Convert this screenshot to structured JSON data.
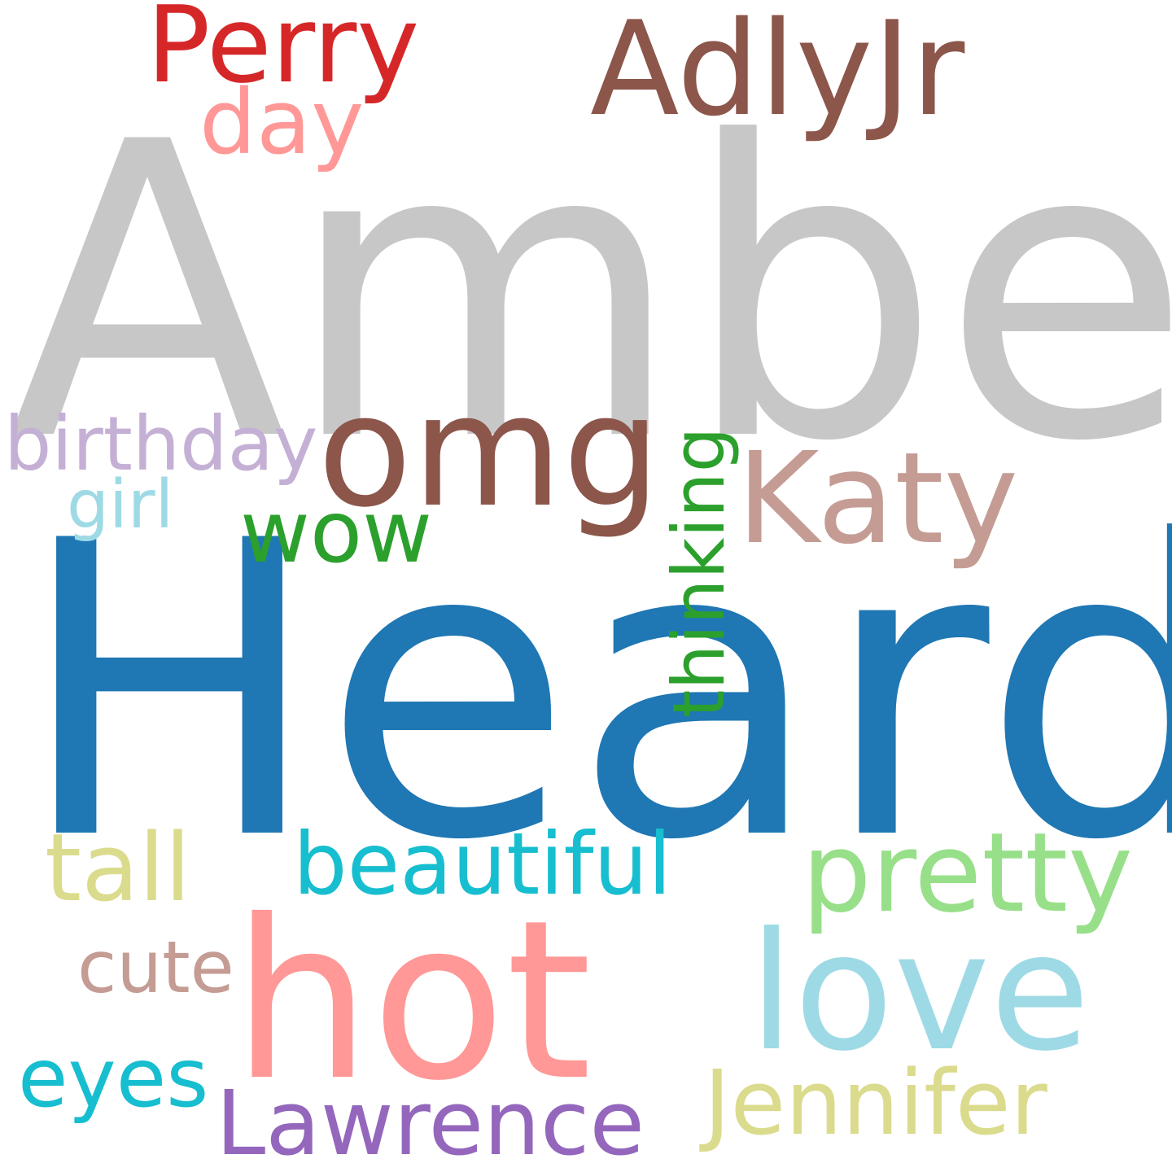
{
  "words": {
    "amber": {
      "text": "Amber",
      "color": "#c7c7c7"
    },
    "heard": {
      "text": "Heard",
      "color": "#1f77b4"
    },
    "perry": {
      "text": "Perry",
      "color": "#d62728"
    },
    "adlyjr": {
      "text": "AdlyJr",
      "color": "#8c564b"
    },
    "day": {
      "text": "day",
      "color": "#ff9896"
    },
    "omg": {
      "text": "omg",
      "color": "#8c564b"
    },
    "katy": {
      "text": "Katy",
      "color": "#c49c94"
    },
    "birthday": {
      "text": "birthday",
      "color": "#c5b0d5"
    },
    "girl": {
      "text": "girl",
      "color": "#9edae5"
    },
    "wow": {
      "text": "wow",
      "color": "#2ca02c"
    },
    "thinking": {
      "text": "thinking",
      "color": "#2ca02c"
    },
    "tall": {
      "text": "tall",
      "color": "#dbdb8d"
    },
    "beautiful": {
      "text": "beautiful",
      "color": "#17becf"
    },
    "pretty": {
      "text": "pretty",
      "color": "#98df8a"
    },
    "cute": {
      "text": "cute",
      "color": "#c49c94"
    },
    "hot": {
      "text": "hot",
      "color": "#ff9896"
    },
    "love": {
      "text": "love",
      "color": "#9edae5"
    },
    "eyes": {
      "text": "eyes",
      "color": "#17becf"
    },
    "lawrence": {
      "text": "Lawrence",
      "color": "#9467bd"
    },
    "jennifer": {
      "text": "Jennifer",
      "color": "#dbdb8d"
    }
  }
}
